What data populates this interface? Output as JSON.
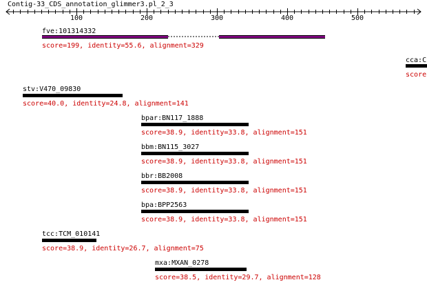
{
  "title": "Contig-33_CDS_annotation_glimmer3.pl_2_3",
  "ruler": {
    "ticks": [
      "100",
      "200",
      "300",
      "400",
      "500"
    ]
  },
  "colors": {
    "bar": "#000000",
    "hit_bar": "#800080",
    "stats": "#cc0000",
    "axis": "#000000"
  },
  "hits": [
    {
      "name": "fve:101314332",
      "stats": "score=199, identity=55.6, alignment=329"
    },
    {
      "name": "cca:C",
      "stats": "score"
    },
    {
      "name": "stv:V470_09830",
      "stats": "score=40.0, identity=24.8, alignment=141"
    },
    {
      "name": "bpar:BN117_1888",
      "stats": "score=38.9, identity=33.8, alignment=151"
    },
    {
      "name": "bbm:BN115_3027",
      "stats": "score=38.9, identity=33.8, alignment=151"
    },
    {
      "name": "bbr:BB2008",
      "stats": "score=38.9, identity=33.8, alignment=151"
    },
    {
      "name": "bpa:BPP2563",
      "stats": "score=38.9, identity=33.8, alignment=151"
    },
    {
      "name": "tcc:TCM_010141",
      "stats": "score=38.9, identity=26.7, alignment=75"
    },
    {
      "name": "mxa:MXAN_0278",
      "stats": "score=38.5, identity=29.7, alignment=128"
    }
  ]
}
